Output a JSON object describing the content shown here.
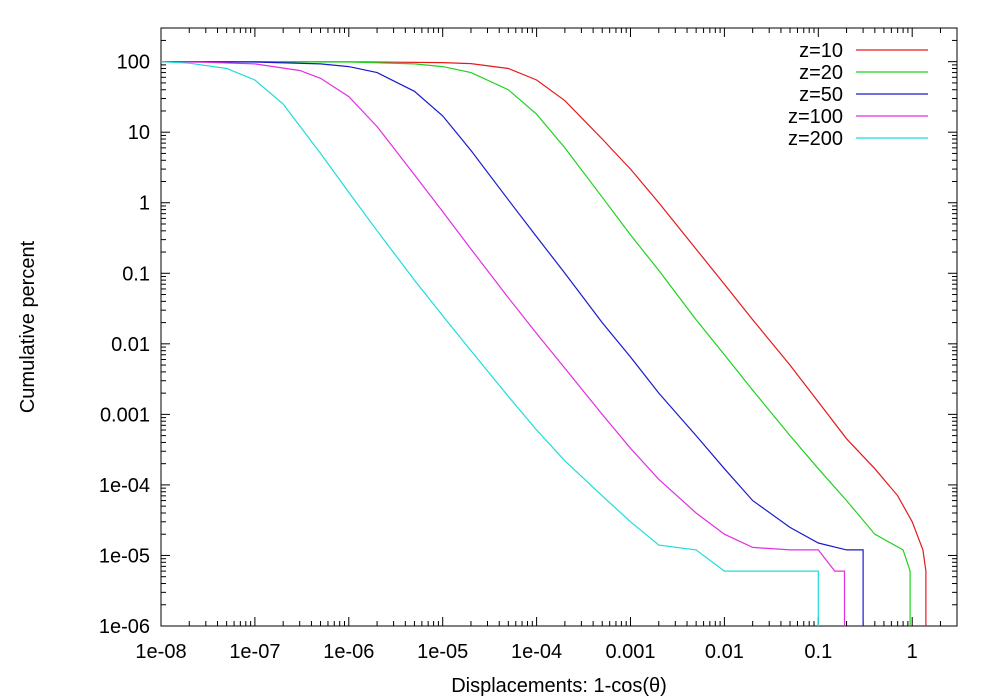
{
  "chart_data": {
    "type": "line",
    "title": "",
    "xlabel": "Displacements: 1-cos(θ)",
    "ylabel": "Cumulative percent",
    "x_scale": "log",
    "y_scale": "log",
    "xlim": [
      1e-08,
      3
    ],
    "ylim": [
      1e-06,
      300
    ],
    "grid": false,
    "legend_position": "top-right",
    "x_ticks": [
      {
        "value": 1e-08,
        "label": "1e-08"
      },
      {
        "value": 1e-07,
        "label": "1e-07"
      },
      {
        "value": 1e-06,
        "label": "1e-06"
      },
      {
        "value": 1e-05,
        "label": "1e-05"
      },
      {
        "value": 0.0001,
        "label": "1e-04"
      },
      {
        "value": 0.001,
        "label": "0.001"
      },
      {
        "value": 0.01,
        "label": "0.01"
      },
      {
        "value": 0.1,
        "label": "0.1"
      },
      {
        "value": 1,
        "label": "1"
      }
    ],
    "y_ticks": [
      {
        "value": 100,
        "label": "100"
      },
      {
        "value": 10,
        "label": "10"
      },
      {
        "value": 1,
        "label": "1"
      },
      {
        "value": 0.1,
        "label": "0.1"
      },
      {
        "value": 0.01,
        "label": "0.01"
      },
      {
        "value": 0.001,
        "label": "0.001"
      },
      {
        "value": 0.0001,
        "label": "1e-04"
      },
      {
        "value": 1e-05,
        "label": "1e-05"
      },
      {
        "value": 1e-06,
        "label": "1e-06"
      }
    ],
    "series": [
      {
        "name": "z=10",
        "color": "#e41a1c",
        "points": [
          [
            1e-08,
            100
          ],
          [
            1e-06,
            99.5
          ],
          [
            1e-05,
            97
          ],
          [
            2e-05,
            94
          ],
          [
            5e-05,
            80
          ],
          [
            0.0001,
            55
          ],
          [
            0.0002,
            28
          ],
          [
            0.0005,
            8
          ],
          [
            0.001,
            3
          ],
          [
            0.002,
            1
          ],
          [
            0.005,
            0.22
          ],
          [
            0.01,
            0.07
          ],
          [
            0.02,
            0.022
          ],
          [
            0.05,
            0.005
          ],
          [
            0.1,
            0.0015
          ],
          [
            0.2,
            0.00045
          ],
          [
            0.4,
            0.00017
          ],
          [
            0.7,
            7e-05
          ],
          [
            1.0,
            3e-05
          ],
          [
            1.3,
            1.2e-05
          ],
          [
            1.4,
            6e-06
          ],
          [
            1.4,
            1e-06
          ]
        ]
      },
      {
        "name": "z=20",
        "color": "#1fd21f",
        "points": [
          [
            1e-08,
            100
          ],
          [
            1e-06,
            99
          ],
          [
            5e-06,
            93
          ],
          [
            1e-05,
            85
          ],
          [
            2e-05,
            70
          ],
          [
            5e-05,
            40
          ],
          [
            0.0001,
            18
          ],
          [
            0.0002,
            6
          ],
          [
            0.0005,
            1.2
          ],
          [
            0.001,
            0.35
          ],
          [
            0.002,
            0.11
          ],
          [
            0.005,
            0.022
          ],
          [
            0.01,
            0.007
          ],
          [
            0.02,
            0.0022
          ],
          [
            0.05,
            0.0005
          ],
          [
            0.1,
            0.00017
          ],
          [
            0.2,
            6e-05
          ],
          [
            0.4,
            2e-05
          ],
          [
            0.8,
            1.2e-05
          ],
          [
            0.95,
            6e-06
          ],
          [
            0.95,
            1e-06
          ]
        ]
      },
      {
        "name": "z=50",
        "color": "#1a1acc",
        "points": [
          [
            1e-08,
            100
          ],
          [
            1e-07,
            99
          ],
          [
            5e-07,
            93
          ],
          [
            1e-06,
            85
          ],
          [
            2e-06,
            70
          ],
          [
            5e-06,
            38
          ],
          [
            1e-05,
            17
          ],
          [
            2e-05,
            5.5
          ],
          [
            5e-05,
            1.1
          ],
          [
            0.0001,
            0.33
          ],
          [
            0.0002,
            0.1
          ],
          [
            0.0005,
            0.02
          ],
          [
            0.001,
            0.0065
          ],
          [
            0.002,
            0.002
          ],
          [
            0.005,
            0.0005
          ],
          [
            0.01,
            0.00017
          ],
          [
            0.02,
            6e-05
          ],
          [
            0.05,
            2.5e-05
          ],
          [
            0.1,
            1.5e-05
          ],
          [
            0.2,
            1.2e-05
          ],
          [
            0.3,
            1.2e-05
          ],
          [
            0.3,
            1e-06
          ]
        ]
      },
      {
        "name": "z=100",
        "color": "#e22fe2",
        "points": [
          [
            1e-08,
            100
          ],
          [
            3e-08,
            98
          ],
          [
            1e-07,
            93
          ],
          [
            3e-07,
            75
          ],
          [
            5e-07,
            58
          ],
          [
            1e-06,
            32
          ],
          [
            2e-06,
            12
          ],
          [
            5e-06,
            2.5
          ],
          [
            1e-05,
            0.75
          ],
          [
            2e-05,
            0.22
          ],
          [
            5e-05,
            0.045
          ],
          [
            0.0001,
            0.014
          ],
          [
            0.0002,
            0.0045
          ],
          [
            0.0005,
            0.001
          ],
          [
            0.001,
            0.00033
          ],
          [
            0.002,
            0.00012
          ],
          [
            0.005,
            4e-05
          ],
          [
            0.01,
            2e-05
          ],
          [
            0.02,
            1.3e-05
          ],
          [
            0.05,
            1.2e-05
          ],
          [
            0.1,
            1.2e-05
          ],
          [
            0.15,
            6e-06
          ],
          [
            0.19,
            6e-06
          ],
          [
            0.19,
            1e-06
          ]
        ]
      },
      {
        "name": "z=200",
        "color": "#1fdcdc",
        "points": [
          [
            1e-08,
            100
          ],
          [
            2e-08,
            95
          ],
          [
            5e-08,
            80
          ],
          [
            1e-07,
            55
          ],
          [
            2e-07,
            25
          ],
          [
            5e-07,
            5
          ],
          [
            1e-06,
            1.4
          ],
          [
            2e-06,
            0.4
          ],
          [
            5e-06,
            0.08
          ],
          [
            1e-05,
            0.025
          ],
          [
            2e-05,
            0.008
          ],
          [
            5e-05,
            0.0018
          ],
          [
            0.0001,
            0.0006
          ],
          [
            0.0002,
            0.00022
          ],
          [
            0.0005,
            7e-05
          ],
          [
            0.001,
            3e-05
          ],
          [
            0.002,
            1.4e-05
          ],
          [
            0.005,
            1.2e-05
          ],
          [
            0.01,
            6e-06
          ],
          [
            0.05,
            6e-06
          ],
          [
            0.1,
            6e-06
          ],
          [
            0.1,
            1e-06
          ]
        ]
      }
    ]
  }
}
